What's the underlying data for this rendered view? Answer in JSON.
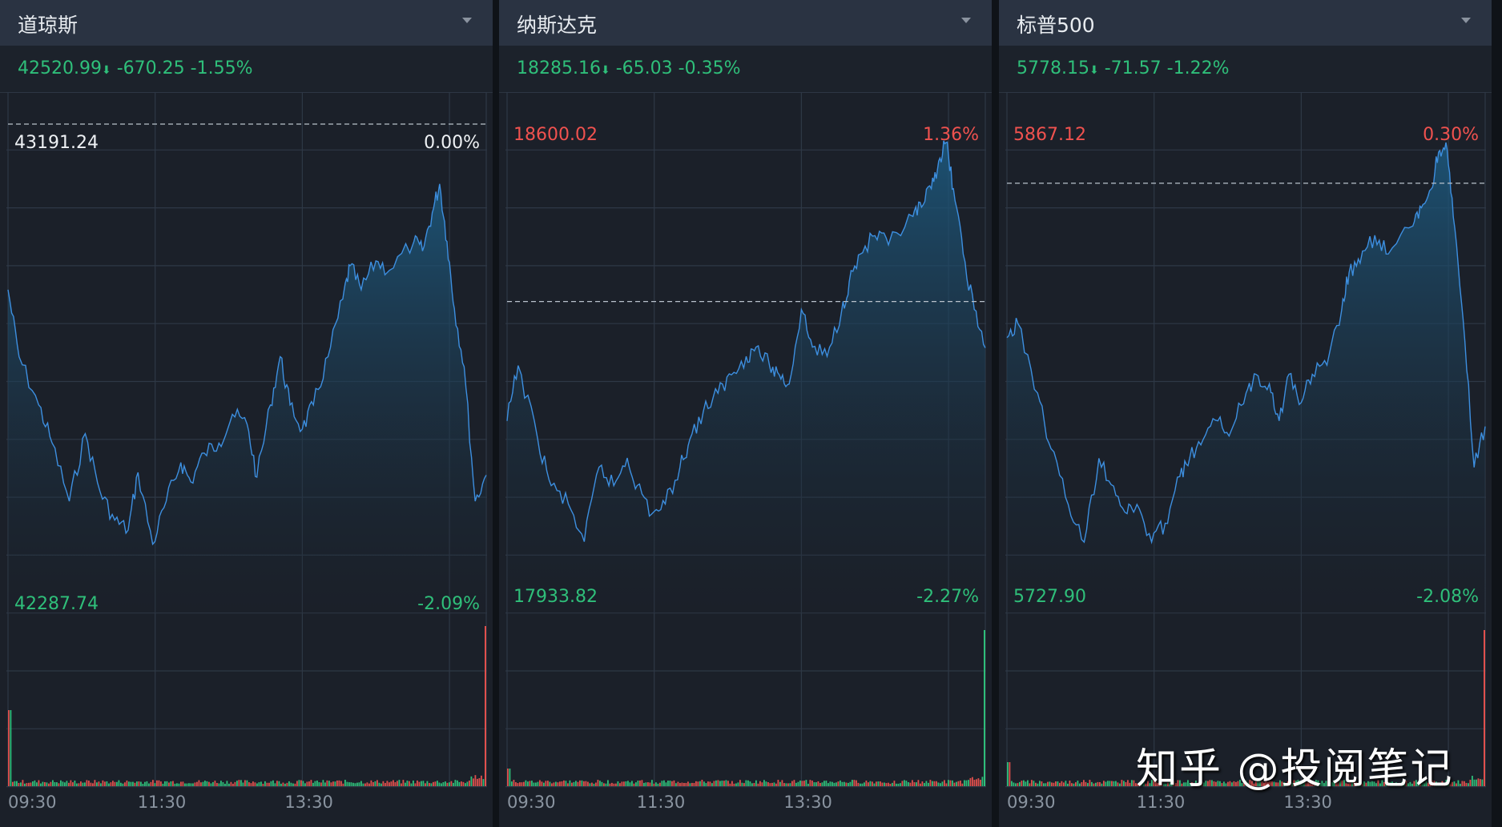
{
  "colors": {
    "up": "#f0524f",
    "down": "#2fbf7a",
    "neutral": "#eef1f4",
    "line": "#3d8fe0",
    "grid": "#2e3846"
  },
  "watermark": "知乎 @投阅笔记",
  "chart_data": [
    {
      "type": "area",
      "title": "道琼斯",
      "dropdown_icon": "caret-down-icon",
      "quote": {
        "price": "42520.99",
        "arrow": "⬇",
        "change": "-670.25",
        "pct": "-1.55%"
      },
      "prev_close": 43191.24,
      "ylim": [
        42287.74,
        43191.24
      ],
      "y_labels": {
        "top": "43191.24",
        "top_pct": "0.00%",
        "bottom": "42287.74",
        "bottom_pct": "-2.09%",
        "top_color": "neutral"
      },
      "x_ticks": [
        "09:30",
        "11:30",
        "13:30"
      ],
      "x": [
        "09:30",
        "09:39",
        "09:55",
        "10:06",
        "10:20",
        "10:33",
        "10:45",
        "10:57",
        "11:08",
        "11:16",
        "11:28",
        "11:39",
        "11:51",
        "11:59",
        "12:10",
        "12:22",
        "12:33",
        "12:45",
        "12:53",
        "13:04",
        "13:12",
        "13:20",
        "13:30",
        "13:39",
        "13:51",
        "14:03",
        "14:09",
        "14:18",
        "14:30",
        "14:41",
        "15:01",
        "15:08",
        "15:16",
        "15:22",
        "15:28",
        "15:34",
        "15:42",
        "15:51",
        "16:00"
      ],
      "values": [
        42875,
        42747,
        42655,
        42582,
        42471,
        42600,
        42490,
        42435,
        42416,
        42526,
        42389,
        42471,
        42545,
        42508,
        42563,
        42582,
        42637,
        42618,
        42517,
        42655,
        42747,
        42655,
        42609,
        42655,
        42747,
        42857,
        42921,
        42875,
        42930,
        42912,
        42967,
        42949,
        43022,
        43077,
        42967,
        42839,
        42728,
        42471,
        42521
      ]
    },
    {
      "type": "area",
      "title": "纳斯达克",
      "dropdown_icon": "caret-down-icon",
      "quote": {
        "price": "18285.16",
        "arrow": "⬇",
        "change": "-65.03",
        "pct": "-0.35%"
      },
      "prev_close": 18350.19,
      "ylim": [
        17933.82,
        18600.02
      ],
      "y_labels": {
        "top": "18600.02",
        "top_pct": "1.36%",
        "bottom": "17933.82",
        "bottom_pct": "-2.27%",
        "top_color": "up"
      },
      "x_ticks": [
        "09:30",
        "11:30",
        "13:30"
      ],
      "x": [
        "09:30",
        "09:39",
        "09:55",
        "10:06",
        "10:20",
        "10:33",
        "10:45",
        "10:57",
        "11:08",
        "11:16",
        "11:28",
        "11:39",
        "11:51",
        "11:59",
        "12:10",
        "12:22",
        "12:33",
        "12:45",
        "12:53",
        "13:04",
        "13:12",
        "13:20",
        "13:30",
        "13:39",
        "13:51",
        "14:03",
        "14:09",
        "14:18",
        "14:30",
        "14:41",
        "15:01",
        "15:08",
        "15:16",
        "15:22",
        "15:28",
        "15:34",
        "15:42",
        "15:51",
        "16:00"
      ],
      "values": [
        18182,
        18260,
        18156,
        18091,
        18065,
        18012,
        18117,
        18091,
        18130,
        18091,
        18051,
        18065,
        18117,
        18156,
        18195,
        18221,
        18247,
        18273,
        18286,
        18260,
        18247,
        18234,
        18339,
        18286,
        18273,
        18339,
        18378,
        18417,
        18443,
        18430,
        18470,
        18483,
        18509,
        18548,
        18574,
        18509,
        18417,
        18339,
        18285
      ]
    },
    {
      "type": "area",
      "title": "标普500",
      "dropdown_icon": "caret-down-icon",
      "quote": {
        "price": "5778.15",
        "arrow": "⬇",
        "change": "-71.57",
        "pct": "-1.22%"
      },
      "prev_close": 5849.72,
      "ylim": [
        5727.9,
        5867.12
      ],
      "y_labels": {
        "top": "5867.12",
        "top_pct": "0.30%",
        "bottom": "5727.90",
        "bottom_pct": "-2.08%",
        "top_color": "up"
      },
      "x_ticks": [
        "09:30",
        "11:30",
        "13:30"
      ],
      "x": [
        "09:30",
        "09:39",
        "09:55",
        "10:06",
        "10:20",
        "10:33",
        "10:45",
        "10:57",
        "11:08",
        "11:16",
        "11:28",
        "11:39",
        "11:51",
        "11:59",
        "12:10",
        "12:22",
        "12:33",
        "12:45",
        "12:53",
        "13:04",
        "13:12",
        "13:20",
        "13:30",
        "13:39",
        "13:51",
        "14:03",
        "14:09",
        "14:18",
        "14:30",
        "14:41",
        "15:01",
        "15:08",
        "15:16",
        "15:22",
        "15:28",
        "15:34",
        "15:42",
        "15:51",
        "16:00"
      ],
      "values": [
        5804.3,
        5808.4,
        5788.0,
        5771.6,
        5755.2,
        5744.1,
        5768.8,
        5760.6,
        5752.5,
        5755.2,
        5744.1,
        5749.7,
        5763.4,
        5768.8,
        5774.3,
        5779.8,
        5777.0,
        5788.0,
        5793.5,
        5790.7,
        5779.8,
        5793.5,
        5785.2,
        5793.5,
        5796.2,
        5812.5,
        5823.4,
        5826.2,
        5834.4,
        5828.9,
        5837.1,
        5842.5,
        5848.0,
        5858.9,
        5861.7,
        5839.8,
        5809.8,
        5766.1,
        5778.15
      ]
    }
  ]
}
